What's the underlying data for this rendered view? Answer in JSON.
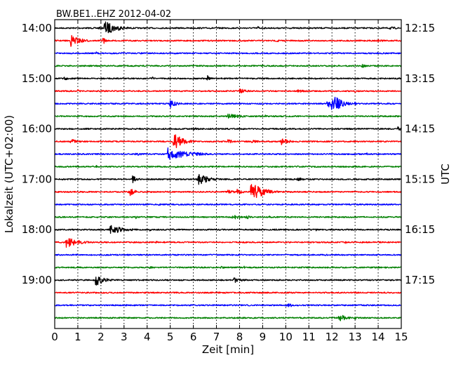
{
  "chart_data": {
    "type": "line",
    "title": "BW.BE1..EHZ 2012-04-02",
    "xlabel": "Zeit  [min]",
    "ylabel_left": "Lokalzeit (UTC+02:00)",
    "ylabel_right": "UTC",
    "xlim": [
      0,
      15
    ],
    "x_ticks": [
      0,
      1,
      2,
      3,
      4,
      5,
      6,
      7,
      8,
      9,
      10,
      11,
      12,
      13,
      14,
      15
    ],
    "x_tick_labels": [
      "0",
      "1",
      "2",
      "3",
      "4",
      "5",
      "6",
      "7",
      "8",
      "9",
      "10",
      "11",
      "12",
      "13",
      "14",
      "15"
    ],
    "grid_x": true,
    "row_minutes": 15,
    "start_local": "14:00",
    "left_time_labels": [
      {
        "row": 0,
        "label": "14:00"
      },
      {
        "row": 4,
        "label": "15:00"
      },
      {
        "row": 8,
        "label": "16:00"
      },
      {
        "row": 12,
        "label": "17:00"
      },
      {
        "row": 16,
        "label": "18:00"
      },
      {
        "row": 20,
        "label": "19:00"
      }
    ],
    "right_time_labels": [
      {
        "row": 0,
        "label": "12:15"
      },
      {
        "row": 4,
        "label": "13:15"
      },
      {
        "row": 8,
        "label": "14:15"
      },
      {
        "row": 12,
        "label": "15:15"
      },
      {
        "row": 16,
        "label": "16:15"
      },
      {
        "row": 20,
        "label": "17:15"
      }
    ],
    "colors": [
      "#000000",
      "#ff0000",
      "#0000ff",
      "#008000"
    ],
    "series": [
      {
        "row": 0,
        "color": "#000000",
        "events": [
          {
            "t": 1.9,
            "amp": 2.0,
            "dur": 0.15
          },
          {
            "t": 2.15,
            "amp": 11.0,
            "dur": 0.5
          },
          {
            "t": 8.8,
            "amp": 3.0,
            "dur": 0.1
          },
          {
            "t": 14.5,
            "amp": 2.0,
            "dur": 0.5
          }
        ]
      },
      {
        "row": 1,
        "color": "#ff0000",
        "events": [
          {
            "t": 0.7,
            "amp": 9.0,
            "dur": 0.4
          },
          {
            "t": 2.1,
            "amp": 6.0,
            "dur": 0.1
          },
          {
            "t": 9.6,
            "amp": 3.0,
            "dur": 0.15
          },
          {
            "t": 14.0,
            "amp": 2.0,
            "dur": 0.5
          }
        ]
      },
      {
        "row": 2,
        "color": "#0000ff",
        "events": [
          {
            "t": 1.8,
            "amp": 2.0,
            "dur": 0.2
          },
          {
            "t": 2.9,
            "amp": 1.5,
            "dur": 0.2
          },
          {
            "t": 12.2,
            "amp": 1.5,
            "dur": 0.3
          }
        ]
      },
      {
        "row": 3,
        "color": "#008000",
        "events": [
          {
            "t": 13.3,
            "amp": 4.0,
            "dur": 0.15
          },
          {
            "t": 5.5,
            "amp": 1.0,
            "dur": 0.3
          }
        ]
      },
      {
        "row": 4,
        "color": "#000000",
        "events": [
          {
            "t": 0.4,
            "amp": 4.0,
            "dur": 0.15
          },
          {
            "t": 4.2,
            "amp": 3.0,
            "dur": 0.1
          },
          {
            "t": 6.6,
            "amp": 5.0,
            "dur": 0.1
          }
        ]
      },
      {
        "row": 5,
        "color": "#ff0000",
        "events": [
          {
            "t": 1.0,
            "amp": 3.0,
            "dur": 0.1
          },
          {
            "t": 8.0,
            "amp": 4.0,
            "dur": 0.35
          },
          {
            "t": 10.5,
            "amp": 2.5,
            "dur": 0.5
          },
          {
            "t": 13.0,
            "amp": 2.0,
            "dur": 0.3
          }
        ]
      },
      {
        "row": 6,
        "color": "#0000ff",
        "events": [
          {
            "t": 5.0,
            "amp": 6.0,
            "dur": 0.3
          },
          {
            "t": 11.8,
            "amp": 6.0,
            "dur": 0.4
          },
          {
            "t": 12.0,
            "amp": 16.0,
            "dur": 0.35
          },
          {
            "t": 13.0,
            "amp": 2.5,
            "dur": 0.1
          }
        ]
      },
      {
        "row": 7,
        "color": "#008000",
        "events": [
          {
            "t": 7.5,
            "amp": 4.0,
            "dur": 0.6
          },
          {
            "t": 9.1,
            "amp": 3.0,
            "dur": 0.1
          },
          {
            "t": 11.9,
            "amp": 1.5,
            "dur": 0.2
          }
        ]
      },
      {
        "row": 8,
        "color": "#000000",
        "events": [
          {
            "t": 14.85,
            "amp": 3.0,
            "dur": 0.3
          },
          {
            "t": 6.0,
            "amp": 1.5,
            "dur": 0.8
          }
        ]
      },
      {
        "row": 9,
        "color": "#ff0000",
        "events": [
          {
            "t": 0.7,
            "amp": 4.0,
            "dur": 0.3
          },
          {
            "t": 5.15,
            "amp": 12.0,
            "dur": 0.4
          },
          {
            "t": 7.5,
            "amp": 3.0,
            "dur": 0.3
          },
          {
            "t": 9.8,
            "amp": 6.0,
            "dur": 0.3
          },
          {
            "t": 8.5,
            "amp": 2.0,
            "dur": 0.6
          }
        ]
      },
      {
        "row": 10,
        "color": "#0000ff",
        "events": [
          {
            "t": 4.9,
            "amp": 9.0,
            "dur": 0.9
          },
          {
            "t": 5.1,
            "amp": 8.0,
            "dur": 0.3
          },
          {
            "t": 3.5,
            "amp": 2.0,
            "dur": 0.5
          },
          {
            "t": 13.5,
            "amp": 2.0,
            "dur": 0.1
          }
        ]
      },
      {
        "row": 11,
        "color": "#008000",
        "events": [
          {
            "t": 1.8,
            "amp": 2.0,
            "dur": 0.2
          },
          {
            "t": 5.2,
            "amp": 2.0,
            "dur": 0.2
          },
          {
            "t": 10.5,
            "amp": 1.5,
            "dur": 0.3
          }
        ]
      },
      {
        "row": 12,
        "color": "#000000",
        "events": [
          {
            "t": 3.35,
            "amp": 6.0,
            "dur": 0.2
          },
          {
            "t": 6.2,
            "amp": 9.0,
            "dur": 0.45
          },
          {
            "t": 10.5,
            "amp": 3.0,
            "dur": 0.3
          },
          {
            "t": 14.0,
            "amp": 2.0,
            "dur": 0.3
          }
        ]
      },
      {
        "row": 13,
        "color": "#ff0000",
        "events": [
          {
            "t": 3.2,
            "amp": 7.0,
            "dur": 0.25
          },
          {
            "t": 7.9,
            "amp": 6.0,
            "dur": 0.2
          },
          {
            "t": 8.5,
            "amp": 17.0,
            "dur": 0.45
          },
          {
            "t": 7.5,
            "amp": 3.0,
            "dur": 0.4
          }
        ]
      },
      {
        "row": 14,
        "color": "#0000ff",
        "events": [
          {
            "t": 4.5,
            "amp": 1.2,
            "dur": 0.5
          }
        ]
      },
      {
        "row": 15,
        "color": "#008000",
        "events": [
          {
            "t": 3.5,
            "amp": 3.0,
            "dur": 0.1
          },
          {
            "t": 7.7,
            "amp": 4.0,
            "dur": 0.35
          },
          {
            "t": 8.3,
            "amp": 3.0,
            "dur": 0.2
          },
          {
            "t": 9.3,
            "amp": 2.0,
            "dur": 0.1
          }
        ]
      },
      {
        "row": 16,
        "color": "#000000",
        "events": [
          {
            "t": 2.4,
            "amp": 7.0,
            "dur": 0.6
          },
          {
            "t": 4.1,
            "amp": 3.0,
            "dur": 0.1
          },
          {
            "t": 9.5,
            "amp": 2.0,
            "dur": 0.2
          },
          {
            "t": 11.3,
            "amp": 2.0,
            "dur": 0.15
          }
        ]
      },
      {
        "row": 17,
        "color": "#ff0000",
        "events": [
          {
            "t": 0.5,
            "amp": 8.0,
            "dur": 0.5
          },
          {
            "t": 4.4,
            "amp": 2.0,
            "dur": 0.1
          },
          {
            "t": 12.6,
            "amp": 2.0,
            "dur": 0.1
          }
        ]
      },
      {
        "row": 18,
        "color": "#0000ff",
        "events": [
          {
            "t": 8.0,
            "amp": 1.2,
            "dur": 0.5
          }
        ]
      },
      {
        "row": 19,
        "color": "#008000",
        "events": [
          {
            "t": 4.1,
            "amp": 3.0,
            "dur": 0.1
          },
          {
            "t": 7.2,
            "amp": 3.0,
            "dur": 0.1
          },
          {
            "t": 8.2,
            "amp": 2.0,
            "dur": 0.1
          }
        ]
      },
      {
        "row": 20,
        "color": "#000000",
        "events": [
          {
            "t": 1.75,
            "amp": 10.0,
            "dur": 0.35
          },
          {
            "t": 7.75,
            "amp": 5.0,
            "dur": 0.3
          }
        ]
      },
      {
        "row": 21,
        "color": "#ff0000",
        "events": []
      },
      {
        "row": 22,
        "color": "#0000ff",
        "events": [
          {
            "t": 10.05,
            "amp": 5.0,
            "dur": 0.2
          }
        ]
      },
      {
        "row": 23,
        "color": "#008000",
        "events": [
          {
            "t": 12.3,
            "amp": 6.0,
            "dur": 0.3
          },
          {
            "t": 13.0,
            "amp": 3.0,
            "dur": 0.1
          }
        ]
      }
    ]
  }
}
